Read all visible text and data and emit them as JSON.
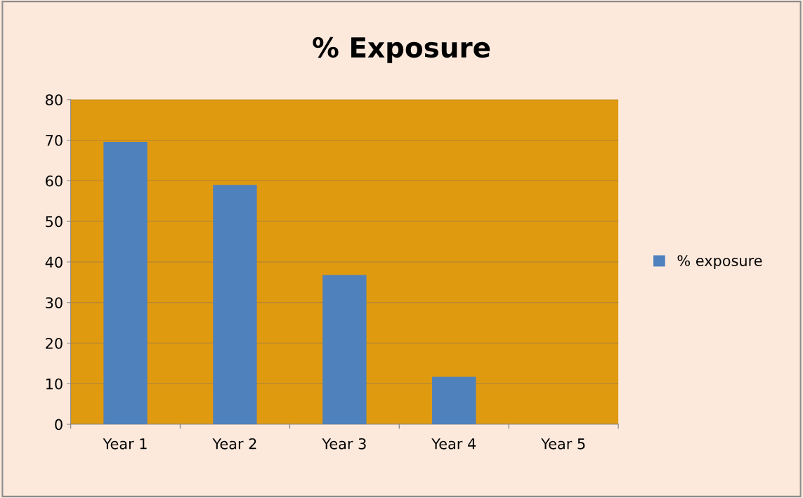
{
  "chart_data": {
    "type": "bar",
    "title": "% Exposure",
    "categories": [
      "Year 1",
      "Year 2",
      "Year 3",
      "Year 4",
      "Year 5"
    ],
    "series": [
      {
        "name": "% exposure",
        "color": "#4f81bd",
        "values": [
          69.6,
          59.0,
          36.8,
          11.7,
          0
        ]
      }
    ],
    "ylim": [
      0,
      80
    ],
    "yticks": [
      0,
      10,
      20,
      30,
      40,
      50,
      60,
      70,
      80
    ],
    "grid": "y",
    "legend": "right"
  }
}
